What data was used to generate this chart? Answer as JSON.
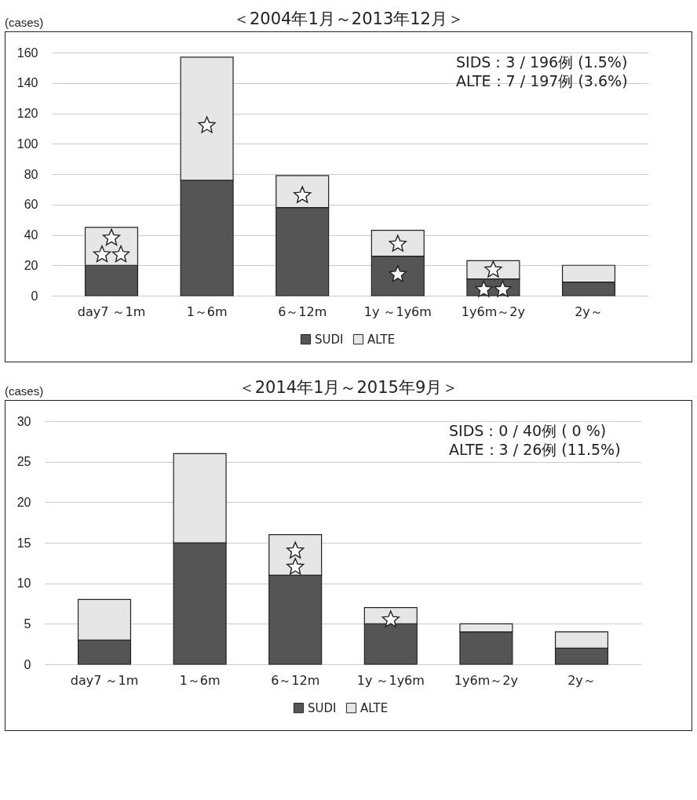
{
  "chart_data": [
    {
      "type": "bar",
      "title": "＜2004年1月～2013年12月＞",
      "ylabel": "(cases)",
      "categories": [
        "day7 ～1m",
        "1～6m",
        "6～12m",
        "1y ～1y6m",
        "1y6m～2y",
        "2y～"
      ],
      "stacked": true,
      "series": [
        {
          "name": "SUDI",
          "color": "#555555",
          "values": [
            20,
            76,
            58,
            26,
            11,
            9
          ]
        },
        {
          "name": "ALTE",
          "color": "#e6e6e6",
          "values": [
            25,
            81,
            21,
            17,
            12,
            11
          ]
        }
      ],
      "ylim": [
        0,
        160
      ],
      "yticks": [
        0,
        20,
        40,
        60,
        80,
        100,
        120,
        140,
        160
      ],
      "grid": "y",
      "legend": "bottom",
      "annotations": [
        "SIDS：3 / 196例 (1.5%)",
        "ALTE：7 / 197例 (3.6%)"
      ]
    },
    {
      "type": "bar",
      "title": "＜2014年1月～2015年9月＞",
      "ylabel": "(cases)",
      "categories": [
        "day7 ～1m",
        "1～6m",
        "6～12m",
        "1y ～1y6m",
        "1y6m～2y",
        "2y～"
      ],
      "stacked": true,
      "series": [
        {
          "name": "SUDI",
          "color": "#555555",
          "values": [
            3,
            15,
            11,
            5,
            4,
            2
          ]
        },
        {
          "name": "ALTE",
          "color": "#e6e6e6",
          "values": [
            5,
            11,
            5,
            2,
            1,
            2
          ]
        }
      ],
      "ylim": [
        0,
        30
      ],
      "yticks": [
        0,
        5,
        10,
        15,
        20,
        25,
        30
      ],
      "grid": "y",
      "legend": "bottom",
      "annotations": [
        "SIDS：0 / 40例 ( 0 %)",
        "ALTE：3 / 26例 (11.5%)"
      ]
    }
  ]
}
